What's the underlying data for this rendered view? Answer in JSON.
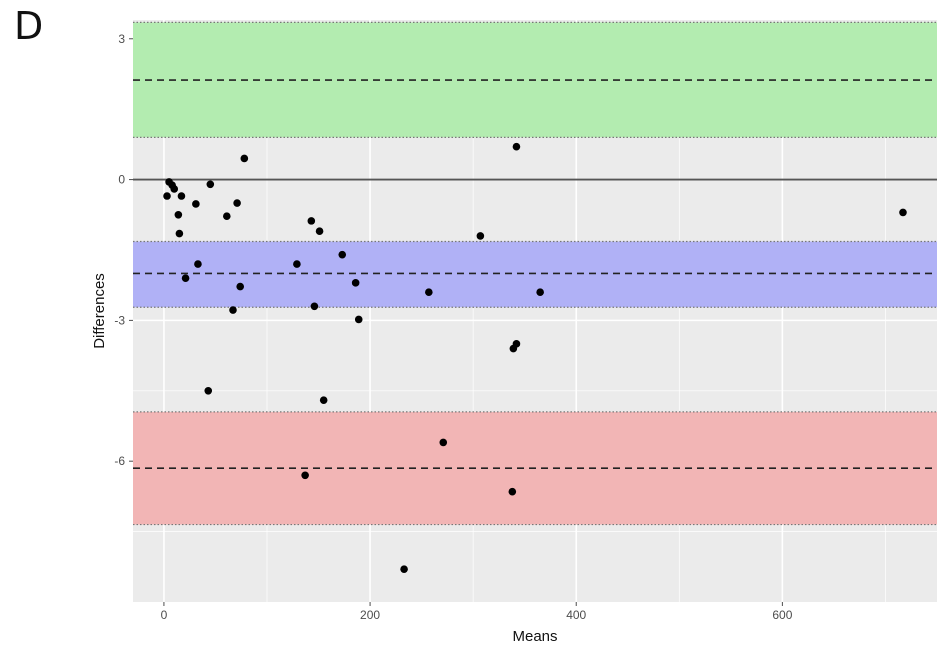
{
  "panel_label": "D",
  "colors": {
    "panel_background": "#ebebeb",
    "grid": "#ffffff",
    "green_band": "#b3ecb0",
    "blue_band": "#b0b1f6",
    "red_band": "#f2b5b5",
    "point": "#000000",
    "zero_line": "#555555"
  },
  "chart_data": {
    "type": "scatter",
    "title": "",
    "xlabel": "Means",
    "ylabel": "Differences",
    "xlim": [
      -30,
      750
    ],
    "ylim": [
      -9,
      3.4
    ],
    "x_ticks": [
      0,
      200,
      400,
      600
    ],
    "x_tick_labels": [
      "0",
      "200",
      "400",
      "600"
    ],
    "y_ticks": [
      3,
      0,
      -3,
      -6
    ],
    "y_tick_labels": [
      "3",
      "0",
      "-3",
      "-6"
    ],
    "grid": true,
    "zero_line": 0,
    "bands": [
      {
        "name": "upper limit of agreement",
        "fill": "#b3ecb0",
        "low": 0.9,
        "high": 3.35,
        "center": 2.12
      },
      {
        "name": "mean difference",
        "fill": "#b0b1f6",
        "low": -2.72,
        "high": -1.32,
        "center": -2.0
      },
      {
        "name": "lower limit of agreement",
        "fill": "#f2b5b5",
        "low": -7.35,
        "high": -4.95,
        "center": -6.15
      }
    ],
    "points": [
      {
        "x": 3,
        "y": -0.35
      },
      {
        "x": 5,
        "y": -0.05
      },
      {
        "x": 8,
        "y": -0.12
      },
      {
        "x": 10,
        "y": -0.2
      },
      {
        "x": 14,
        "y": -0.75
      },
      {
        "x": 15,
        "y": -1.15
      },
      {
        "x": 17,
        "y": -0.35
      },
      {
        "x": 21,
        "y": -2.1
      },
      {
        "x": 31,
        "y": -0.52
      },
      {
        "x": 33,
        "y": -1.8
      },
      {
        "x": 43,
        "y": -4.5
      },
      {
        "x": 45,
        "y": -0.1
      },
      {
        "x": 61,
        "y": -0.78
      },
      {
        "x": 67,
        "y": -2.78
      },
      {
        "x": 71,
        "y": -0.5
      },
      {
        "x": 74,
        "y": -2.28
      },
      {
        "x": 78,
        "y": 0.45
      },
      {
        "x": 129,
        "y": -1.8
      },
      {
        "x": 137,
        "y": -6.3
      },
      {
        "x": 143,
        "y": -0.88
      },
      {
        "x": 146,
        "y": -2.7
      },
      {
        "x": 151,
        "y": -1.1
      },
      {
        "x": 155,
        "y": -4.7
      },
      {
        "x": 173,
        "y": -1.6
      },
      {
        "x": 186,
        "y": -2.2
      },
      {
        "x": 189,
        "y": -2.98
      },
      {
        "x": 233,
        "y": -8.3
      },
      {
        "x": 257,
        "y": -2.4
      },
      {
        "x": 271,
        "y": -5.6
      },
      {
        "x": 307,
        "y": -1.2
      },
      {
        "x": 338,
        "y": -6.65
      },
      {
        "x": 339,
        "y": -3.6
      },
      {
        "x": 342,
        "y": -3.5
      },
      {
        "x": 342,
        "y": 0.7
      },
      {
        "x": 365,
        "y": -2.4
      },
      {
        "x": 717,
        "y": -0.7
      }
    ]
  }
}
